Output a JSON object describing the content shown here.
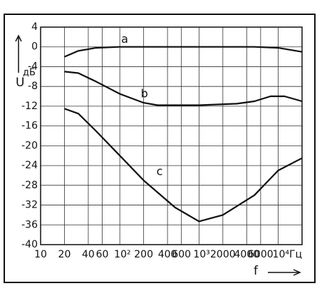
{
  "chart_data": {
    "type": "line",
    "y_label": "U",
    "y_unit": "дБ",
    "x_label": "f",
    "log_x": true,
    "grid": true,
    "color": "#111111",
    "xlim": [
      10,
      20000
    ],
    "ylim": [
      -40,
      4
    ],
    "xticks": [
      10,
      20,
      40,
      60,
      {
        "value": 100,
        "label": "10²"
      },
      200,
      400,
      600,
      {
        "value": 1000,
        "label": "10³"
      },
      2000,
      4000,
      6000,
      {
        "value": 10000,
        "label": "10⁴Гц"
      }
    ],
    "yticks": [
      4,
      0,
      -4,
      -8,
      -12,
      -16,
      -20,
      -24,
      -28,
      -32,
      -36,
      -40
    ],
    "series": [
      {
        "name": "a",
        "color": "#111111",
        "x": [
          20,
          30,
          50,
          100,
          1000,
          5000,
          10000,
          20000
        ],
        "values": [
          -2,
          -0.8,
          -0.2,
          0,
          0,
          0,
          -0.2,
          -1
        ]
      },
      {
        "name": "b",
        "color": "#111111",
        "x": [
          20,
          30,
          50,
          100,
          200,
          300,
          1000,
          3000,
          5000,
          8000,
          12000,
          20000
        ],
        "values": [
          -5,
          -5.3,
          -7,
          -9.5,
          -11.3,
          -11.8,
          -11.8,
          -11.5,
          -11,
          -10,
          -10,
          -11
        ]
      },
      {
        "name": "c",
        "color": "#111111",
        "x": [
          20,
          30,
          50,
          100,
          200,
          500,
          1000,
          2000,
          5000,
          10000,
          20000
        ],
        "values": [
          -12.5,
          -13.5,
          -17,
          -22,
          -27,
          -32.5,
          -35.3,
          -34,
          -30,
          -25,
          -22.5
        ]
      }
    ]
  }
}
